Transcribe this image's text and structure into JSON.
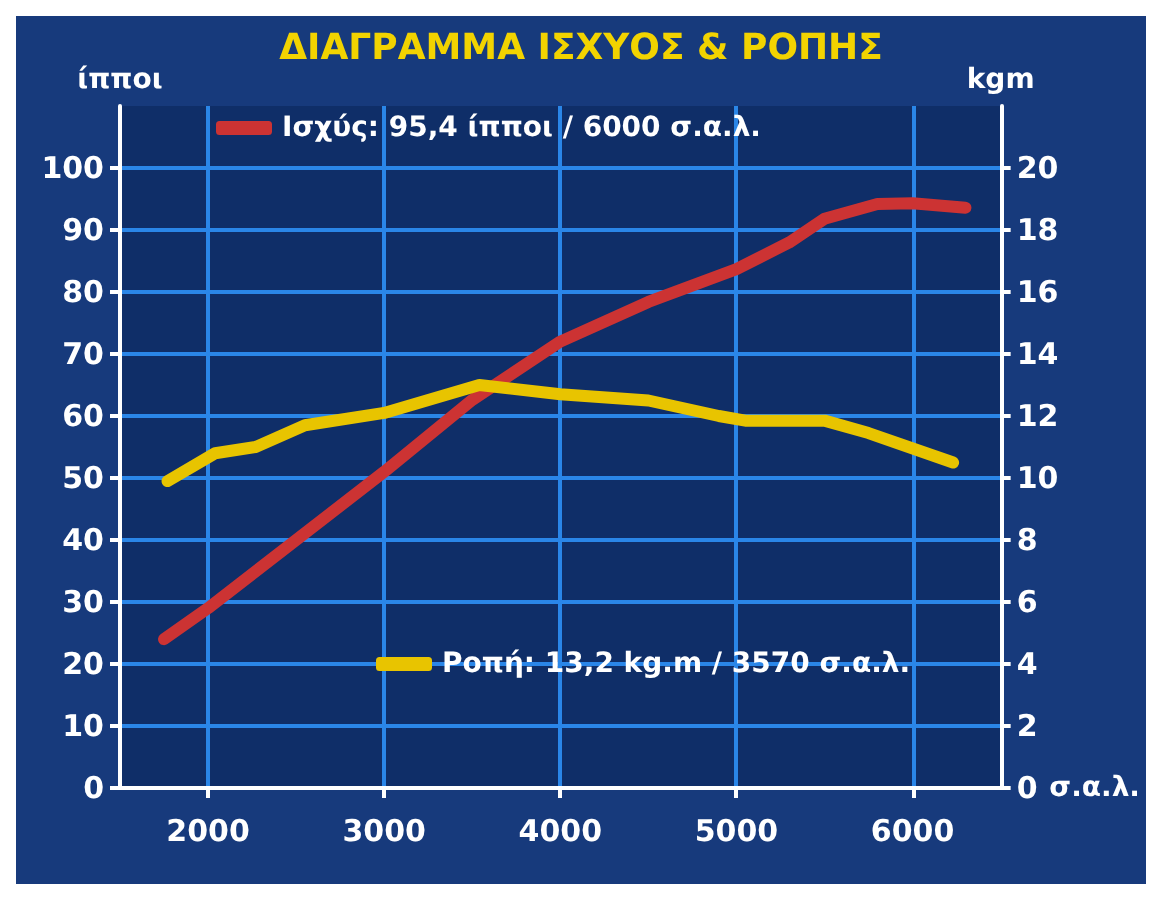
{
  "chart_data": {
    "type": "line",
    "title": "ΔΙΑΓΡΑΜΜΑ ΙΣΧΥΟΣ & ΡΟΠΗΣ",
    "xlabel": "σ.α.λ.",
    "ylabel": "ίπποι",
    "y2label": "kgm",
    "xlim": [
      1500,
      6500
    ],
    "xticks": [
      2000,
      3000,
      4000,
      5000,
      6000
    ],
    "ylim": [
      0,
      110
    ],
    "yticks": [
      0,
      10,
      20,
      30,
      40,
      50,
      60,
      70,
      80,
      90,
      100
    ],
    "y2lim": [
      0,
      22
    ],
    "y2ticks": [
      0,
      2,
      4,
      6,
      8,
      10,
      12,
      14,
      16,
      18,
      20
    ],
    "series": [
      {
        "name": "Ισχύς: 95,4 ίπποι / 6000 σ.α.λ.",
        "color": "#cc3333",
        "x": [
          1750,
          2000,
          3000,
          3500,
          4000,
          4500,
          5000,
          5300,
          5500,
          5800,
          6000,
          6300
        ],
        "values": [
          24,
          29,
          51,
          62.6,
          72,
          78.4,
          83.7,
          88,
          91.8,
          94.2,
          94.3,
          93.6
        ]
      },
      {
        "name": "Ροπή: 13,2 kg.m / 3570 σ.α.λ.",
        "color": "#e8c400",
        "axis": "y2",
        "x": [
          1770,
          2040,
          2270,
          2550,
          3000,
          3540,
          4000,
          4500,
          4900,
          5050,
          5500,
          5750,
          6230
        ],
        "values": [
          9.9,
          10.8,
          11.0,
          11.7,
          12.1,
          13.0,
          12.7,
          12.5,
          12.0,
          11.85,
          11.85,
          11.45,
          10.5
        ]
      }
    ],
    "grid": true,
    "legend": "top left",
    "marker": "none",
    "line_style": "solid"
  }
}
